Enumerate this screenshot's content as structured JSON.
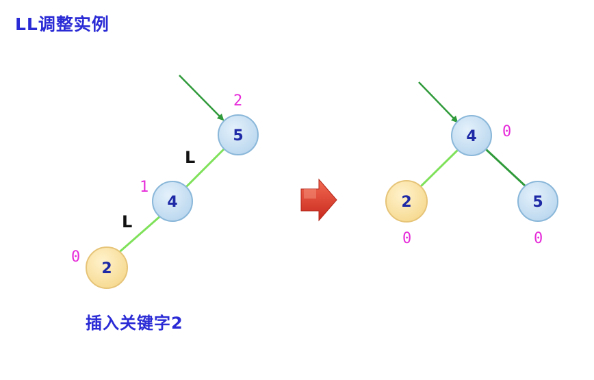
{
  "title": "LL调整实例",
  "caption": "插入关键字2",
  "colors": {
    "title": "#2b2bd6",
    "node_blue_fill": "#c5def2",
    "node_blue_stroke": "#8ab7d9",
    "node_yellow_fill": "#fbe3a6",
    "node_yellow_stroke": "#e6c478",
    "node_text": "#1f2aa6",
    "balance_factor": "#e62bd9",
    "edge_light": "#7fe15a",
    "edge_dark": "#2f9a3a",
    "arrow": "#e03a2a"
  },
  "before_tree": {
    "nodes": [
      {
        "key": "5",
        "balance": "2",
        "kind": "blue"
      },
      {
        "key": "4",
        "balance": "1",
        "kind": "blue"
      },
      {
        "key": "2",
        "balance": "0",
        "kind": "yellow"
      }
    ],
    "edge_labels": [
      "L",
      "L"
    ],
    "root_pointer": "root-pointer-arrow"
  },
  "after_tree": {
    "nodes": [
      {
        "key": "4",
        "balance": "0",
        "kind": "blue"
      },
      {
        "key": "2",
        "balance": "0",
        "kind": "yellow"
      },
      {
        "key": "5",
        "balance": "0",
        "kind": "blue"
      }
    ],
    "root_pointer": "root-pointer-arrow"
  },
  "transform_arrow": "right-arrow-icon"
}
